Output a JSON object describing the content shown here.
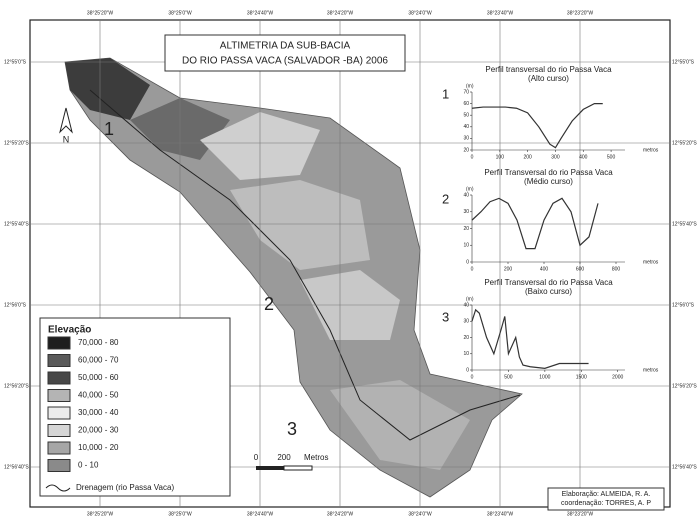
{
  "map": {
    "title": [
      "ALTIMETRIA DA SUB-BACIA",
      "DO RIO PASSA VACA (SALVADOR -BA) 2006"
    ],
    "north": "N",
    "markers": [
      "1",
      "2",
      "3"
    ],
    "graticule": {
      "top": [
        "38°25'20\"W",
        "38°25'0\"W",
        "38°24'40\"W",
        "38°24'20\"W",
        "38°24'0\"W",
        "38°23'40\"W",
        "38°23'20\"W"
      ],
      "left": [
        "12°55'0\"S",
        "12°55'20\"S",
        "12°55'40\"S",
        "12°56'0\"S",
        "12°56'20\"S",
        "12°56'40\"S"
      ]
    },
    "legend": {
      "title": "Elevação",
      "classes": [
        {
          "label": "70,000 - 80",
          "color": "#1e1e1e"
        },
        {
          "label": "60,000 - 70",
          "color": "#5a5a5a"
        },
        {
          "label": "50,000 - 60",
          "color": "#474747"
        },
        {
          "label": "40,000 - 50",
          "color": "#b4b4b4"
        },
        {
          "label": "30,000 - 40",
          "color": "#ececec"
        },
        {
          "label": "20,000 - 30",
          "color": "#d6d6d6"
        },
        {
          "label": "10,000 - 20",
          "color": "#a6a6a6"
        },
        {
          "label": "0 - 10",
          "color": "#8a8a8a"
        }
      ],
      "drainage": "Drenagem (rio Passa Vaca)"
    },
    "scale": [
      "0",
      "200",
      "Metros"
    ],
    "credits": [
      "Elaboração: ALMEIDA, R. A.",
      "coordenação: TORRES, A. P"
    ]
  },
  "chart_data": [
    {
      "type": "line",
      "number": "1",
      "title": "Perfil transversal do rio Passa Vaca",
      "subtitle": "(Alto curso)",
      "y_label": "(m)",
      "x_label": "metros",
      "color": "#333333",
      "x": [
        0,
        40,
        80,
        120,
        160,
        200,
        240,
        280,
        300,
        320,
        360,
        400,
        440,
        470
      ],
      "values": [
        56,
        57,
        57,
        57,
        56,
        52,
        40,
        25,
        22,
        30,
        45,
        55,
        60,
        60
      ],
      "xlim": [
        0,
        550
      ],
      "xticks": [
        0,
        100,
        200,
        300,
        400,
        500
      ],
      "ylim": [
        20,
        70
      ],
      "yticks": [
        20,
        30,
        40,
        50,
        60,
        70
      ]
    },
    {
      "type": "line",
      "number": "2",
      "title": "Perfil Transversal do rio Passa Vaca",
      "subtitle": "(Médio curso)",
      "y_label": "(m)",
      "x_label": "metros",
      "color": "#333333",
      "x": [
        0,
        50,
        100,
        150,
        200,
        250,
        300,
        350,
        400,
        450,
        500,
        550,
        600,
        650,
        700
      ],
      "values": [
        25,
        30,
        36,
        38,
        35,
        25,
        8,
        8,
        25,
        35,
        38,
        30,
        10,
        15,
        35
      ],
      "xlim": [
        0,
        850
      ],
      "xticks": [
        0,
        200,
        400,
        600,
        800
      ],
      "ylim": [
        0,
        40
      ],
      "yticks": [
        0,
        10,
        20,
        30,
        40
      ]
    },
    {
      "type": "line",
      "number": "3",
      "title": "Perfil Transversal do rio Passa Vaca",
      "subtitle": "(Baixo curso)",
      "y_label": "(m)",
      "x_label": "metros",
      "color": "#333333",
      "x": [
        0,
        50,
        100,
        200,
        300,
        400,
        450,
        500,
        600,
        650,
        700,
        800,
        1000,
        1200,
        1500,
        1600
      ],
      "values": [
        30,
        37,
        35,
        20,
        10,
        25,
        33,
        10,
        20,
        8,
        3,
        2,
        1,
        4,
        4,
        4
      ],
      "xlim": [
        0,
        2100
      ],
      "xticks": [
        0,
        500,
        1000,
        1500,
        2000
      ],
      "ylim": [
        0,
        40
      ],
      "yticks": [
        0,
        10,
        20,
        30,
        40
      ]
    }
  ]
}
